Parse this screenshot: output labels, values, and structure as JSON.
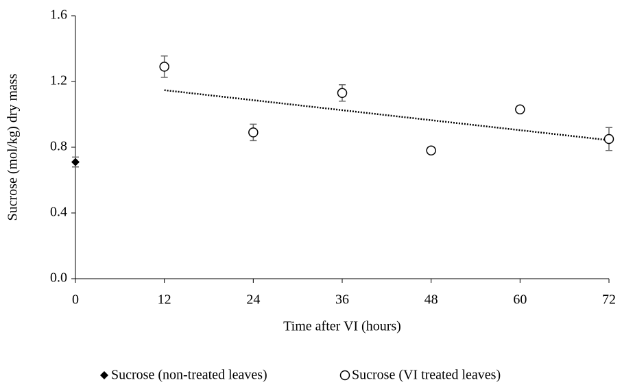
{
  "chart_data": {
    "type": "scatter",
    "x_label": "Time after VI (hours)",
    "y_label": "Sucrose (mol/kg) dry mass",
    "xlim": [
      0,
      72
    ],
    "xticks": [
      0,
      12,
      24,
      36,
      48,
      60,
      72
    ],
    "ylim": [
      0,
      1.6
    ],
    "yticks": [
      {
        "value": 0,
        "label": "0.0"
      },
      0.4,
      0.8,
      1.2,
      1.6
    ],
    "grid": false,
    "legend": "bottom",
    "trendline": "linear",
    "series": [
      {
        "name": "Sucrose (non-treated leaves)",
        "marker": "diamond",
        "color": "#000000",
        "x": [
          0
        ],
        "values": [
          0.71
        ],
        "errors": [
          0.03
        ],
        "trendline": false
      },
      {
        "name": "Sucrose (VI treated leaves)",
        "marker": "circle",
        "color": "#000000",
        "x": [
          12,
          24,
          36,
          48,
          60,
          72
        ],
        "values": [
          1.29,
          0.89,
          1.13,
          0.78,
          1.03,
          0.85
        ],
        "errors": [
          0.065,
          0.05,
          0.05,
          0.02,
          0.02,
          0.07
        ],
        "trendline": true
      }
    ]
  }
}
